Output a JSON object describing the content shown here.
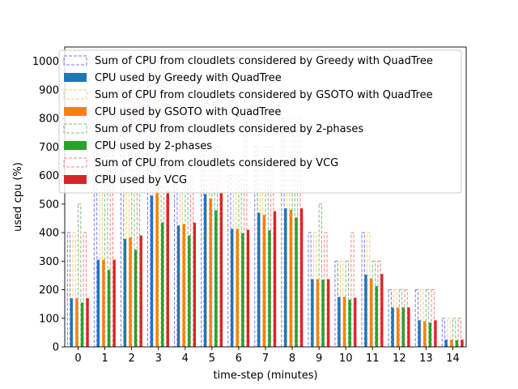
{
  "chart_data": {
    "type": "bar",
    "xlabel": "time-step (minutes)",
    "ylabel": "used cpu (%)",
    "ylim": [
      0,
      1050
    ],
    "yticks": [
      0,
      100,
      200,
      300,
      400,
      500,
      600,
      700,
      800,
      900,
      1000
    ],
    "categories": [
      "0",
      "1",
      "2",
      "3",
      "4",
      "5",
      "6",
      "7",
      "8",
      "9",
      "10",
      "11",
      "12",
      "13",
      "14"
    ],
    "legend_position": "top",
    "series": [
      {
        "name": "Sum of CPU from cloudlets considered by Greedy with QuadTree",
        "style": "dashed",
        "color": "#7a7aff",
        "values": [
          400,
          700,
          900,
          1000,
          600,
          700,
          600,
          700,
          800,
          400,
          300,
          400,
          200,
          200,
          100
        ]
      },
      {
        "name": "CPU used by Greedy with QuadTree",
        "style": "filled",
        "color": "#1f77b4",
        "values": [
          170,
          305,
          378,
          530,
          425,
          535,
          413,
          470,
          485,
          237,
          175,
          253,
          138,
          93,
          25
        ]
      },
      {
        "name": "Sum of CPU from cloudlets considered by GSOTO with QuadTree",
        "style": "dashed",
        "color": "#ffc977",
        "values": [
          400,
          700,
          900,
          1000,
          600,
          700,
          600,
          700,
          800,
          400,
          300,
          400,
          200,
          200,
          100
        ]
      },
      {
        "name": "CPU used by GSOTO with QuadTree",
        "style": "filled",
        "color": "#ff7f0e",
        "values": [
          170,
          305,
          383,
          545,
          430,
          520,
          413,
          462,
          480,
          237,
          175,
          240,
          138,
          90,
          25
        ]
      },
      {
        "name": "Sum of CPU from cloudlets considered by 2-phases",
        "style": "dashed",
        "color": "#7fbf7f",
        "values": [
          500,
          700,
          900,
          1000,
          600,
          700,
          600,
          700,
          800,
          500,
          300,
          300,
          200,
          200,
          100
        ]
      },
      {
        "name": "CPU used by 2-phases",
        "style": "filled",
        "color": "#2ca02c",
        "values": [
          155,
          270,
          340,
          435,
          390,
          478,
          398,
          408,
          453,
          235,
          165,
          213,
          138,
          85,
          23
        ]
      },
      {
        "name": "Sum of CPU from cloudlets considered by VCG",
        "style": "dashed",
        "color": "#ff7f7f",
        "values": [
          400,
          700,
          900,
          1000,
          600,
          700,
          800,
          700,
          800,
          400,
          400,
          300,
          200,
          200,
          100
        ]
      },
      {
        "name": "CPU used by VCG",
        "style": "filled",
        "color": "#d62728",
        "values": [
          170,
          305,
          390,
          545,
          435,
          540,
          410,
          475,
          485,
          237,
          172,
          255,
          138,
          93,
          25
        ]
      }
    ]
  }
}
